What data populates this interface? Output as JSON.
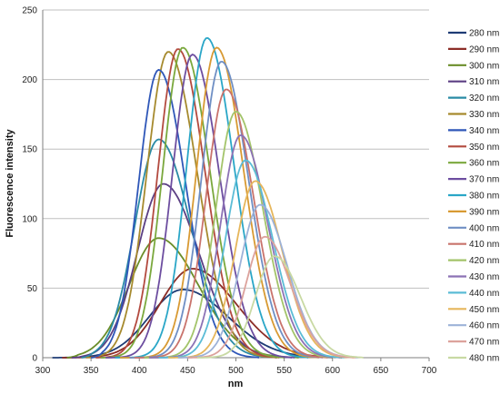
{
  "chart_data": {
    "type": "line",
    "title": "",
    "xlabel": "nm",
    "ylabel": "Fluorescence intensity",
    "xlim": [
      300,
      700
    ],
    "ylim": [
      0,
      250
    ],
    "xticks": [
      300,
      350,
      400,
      450,
      500,
      550,
      600,
      650,
      700
    ],
    "yticks": [
      0,
      50,
      100,
      150,
      200,
      250
    ],
    "grid": "horizontal",
    "legend": "right",
    "series": [
      {
        "name": "280 nm",
        "color": "#1f3c75",
        "peak_x": 445,
        "peak_y": 49,
        "width": 70,
        "start": 310
      },
      {
        "name": "290 nm",
        "color": "#8c2d27",
        "peak_x": 455,
        "peak_y": 64,
        "width": 68,
        "start": 320
      },
      {
        "name": "300 nm",
        "color": "#6b8e2a",
        "peak_x": 420,
        "peak_y": 86,
        "width": 62,
        "start": 325
      },
      {
        "name": "310 nm",
        "color": "#5b3f83",
        "peak_x": 425,
        "peak_y": 125,
        "width": 55,
        "start": 330
      },
      {
        "name": "320 nm",
        "color": "#2a8ba6",
        "peak_x": 420,
        "peak_y": 157,
        "width": 50,
        "start": 340
      },
      {
        "name": "330 nm",
        "color": "#a68a2e",
        "peak_x": 430,
        "peak_y": 220,
        "width": 45,
        "start": 345
      },
      {
        "name": "340 nm",
        "color": "#2f57b8",
        "peak_x": 420,
        "peak_y": 207,
        "width": 42,
        "start": 350
      },
      {
        "name": "350 nm",
        "color": "#b34a3f",
        "peak_x": 440,
        "peak_y": 222,
        "width": 42,
        "start": 355
      },
      {
        "name": "360 nm",
        "color": "#7aa83d",
        "peak_x": 445,
        "peak_y": 223,
        "width": 42,
        "start": 360
      },
      {
        "name": "370 nm",
        "color": "#6d4ea0",
        "peak_x": 455,
        "peak_y": 218,
        "width": 42,
        "start": 365
      },
      {
        "name": "380 nm",
        "color": "#2aa6c7",
        "peak_x": 470,
        "peak_y": 230,
        "width": 42,
        "start": 375
      },
      {
        "name": "390 nm",
        "color": "#d89a33",
        "peak_x": 480,
        "peak_y": 223,
        "width": 42,
        "start": 380
      },
      {
        "name": "400 nm",
        "color": "#6f8fc4",
        "peak_x": 485,
        "peak_y": 213,
        "width": 42,
        "start": 390
      },
      {
        "name": "410 nm",
        "color": "#c9736c",
        "peak_x": 490,
        "peak_y": 193,
        "width": 42,
        "start": 395
      },
      {
        "name": "420 nm",
        "color": "#a3c46a",
        "peak_x": 500,
        "peak_y": 177,
        "width": 42,
        "start": 405
      },
      {
        "name": "430 nm",
        "color": "#8c72b5",
        "peak_x": 505,
        "peak_y": 160,
        "width": 42,
        "start": 410
      },
      {
        "name": "440 nm",
        "color": "#5bbcd6",
        "peak_x": 510,
        "peak_y": 142,
        "width": 42,
        "start": 420
      },
      {
        "name": "450 nm",
        "color": "#e6b65b",
        "peak_x": 520,
        "peak_y": 127,
        "width": 42,
        "start": 430
      },
      {
        "name": "460 nm",
        "color": "#9db2d8",
        "peak_x": 525,
        "peak_y": 110,
        "width": 42,
        "start": 440
      },
      {
        "name": "470 nm",
        "color": "#dca29c",
        "peak_x": 530,
        "peak_y": 87,
        "width": 40,
        "start": 450
      },
      {
        "name": "480 nm",
        "color": "#c8d9a3",
        "peak_x": 540,
        "peak_y": 73,
        "width": 40,
        "start": 460
      }
    ]
  }
}
